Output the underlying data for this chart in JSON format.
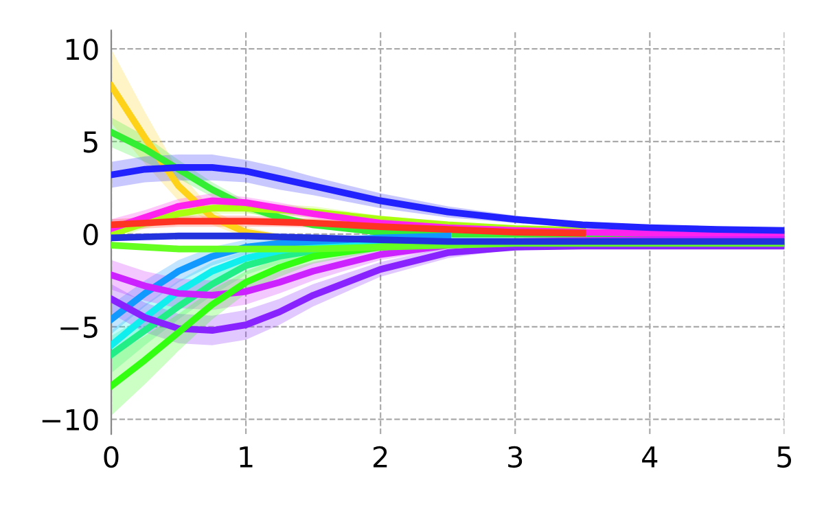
{
  "chart_data": {
    "type": "line",
    "xlim": [
      0,
      5
    ],
    "ylim": [
      -10.8,
      11
    ],
    "xticks": [
      0,
      1,
      2,
      3,
      4,
      5
    ],
    "yticks": [
      {
        "value": -10,
        "label": "−10"
      },
      {
        "value": -5,
        "label": "−5"
      },
      0,
      5,
      10
    ],
    "grid": true,
    "line_style": "solid",
    "marker": "none",
    "x": [
      0,
      0.25,
      0.5,
      0.75,
      1,
      1.25,
      1.5,
      2,
      2.5,
      3,
      3.5,
      4,
      4.5,
      5
    ],
    "series": [
      {
        "color": "#ffd21a",
        "values": [
          8,
          5.2,
          2.6,
          0.9,
          0.1,
          -0.2,
          null,
          null,
          null,
          null,
          null,
          null,
          null,
          null
        ],
        "lower": [
          6,
          3.8,
          1.8,
          0.5,
          -0.2,
          -0.4,
          -0.5,
          -0.4,
          -0.4,
          -0.4,
          -0.4,
          -0.4,
          -0.4,
          -0.4
        ],
        "upper": [
          10,
          6.6,
          3.4,
          1.3,
          0.4,
          0,
          -0.1,
          -0.2,
          -0.2,
          -0.2,
          -0.2,
          -0.2,
          -0.2,
          -0.2
        ]
      },
      {
        "color": "#33ee33",
        "values": [
          5.5,
          4.6,
          3.5,
          2.4,
          1.5,
          0.9,
          0.5,
          0.1,
          0,
          0,
          0,
          0,
          0,
          0
        ],
        "lower": [
          4.7,
          3.9,
          3,
          2,
          1.2,
          0.7,
          0.3,
          0,
          -0.1,
          -0.1,
          -0.1,
          -0.1,
          -0.1,
          -0.1
        ],
        "upper": [
          6.3,
          5.3,
          4,
          2.8,
          1.8,
          1.1,
          0.7,
          0.2,
          0.1,
          0.1,
          0.1,
          0.1,
          0.1,
          0.1
        ]
      },
      {
        "color": "#aaff11",
        "values": [
          0,
          0.6,
          1.1,
          1.4,
          1.4,
          1.3,
          1.2,
          0.8,
          0.5,
          0.3,
          0.2,
          null,
          null,
          null
        ],
        "lower": [
          -0.3,
          0.3,
          0.8,
          1.1,
          1.1,
          1.0,
          0.9,
          0.6,
          0.35,
          0.2,
          0.1,
          0.05,
          0,
          0
        ],
        "upper": [
          0.3,
          0.9,
          1.4,
          1.7,
          1.7,
          1.6,
          1.5,
          1.0,
          0.65,
          0.4,
          0.3,
          0.25,
          0.2,
          0.2
        ]
      },
      {
        "color": "#ff22ee",
        "values": [
          0.3,
          0.9,
          1.5,
          1.8,
          1.7,
          1.4,
          1.1,
          0.6,
          0.35,
          0.2,
          0.1,
          0.05,
          0,
          0
        ],
        "lower": [
          -0.2,
          0.5,
          1.1,
          1.4,
          1.4,
          1.1,
          0.85,
          0.4,
          0.2,
          0.1,
          0,
          0,
          -0.05,
          -0.05
        ],
        "upper": [
          0.8,
          1.3,
          1.9,
          2.2,
          2.0,
          1.7,
          1.35,
          0.8,
          0.5,
          0.3,
          0.2,
          0.1,
          0.05,
          0.05
        ]
      },
      {
        "color": "#ff3322",
        "values": [
          0.5,
          0.6,
          0.7,
          0.7,
          0.7,
          0.65,
          0.6,
          0.4,
          0.25,
          0.1,
          0.05,
          null,
          null,
          null
        ],
        "lower": [
          0.2,
          0.3,
          0.4,
          0.4,
          0.4,
          0.4,
          0.35,
          0.2,
          0.1,
          0,
          -0.05,
          -0.1,
          -0.1,
          -0.1
        ],
        "upper": [
          0.8,
          0.9,
          1.0,
          1.0,
          1.0,
          0.9,
          0.85,
          0.6,
          0.4,
          0.2,
          0.15,
          0.1,
          0.1,
          0.1
        ]
      },
      {
        "color": "#22ee88",
        "values": [
          -6.5,
          -5.2,
          -3.9,
          -2.7,
          -1.7,
          -1.2,
          -0.9,
          -0.5,
          -0.3,
          null,
          null,
          null,
          null,
          null
        ],
        "lower": [
          -7.5,
          -6,
          -4.6,
          -3.3,
          -2.2,
          -1.6,
          -1.2,
          -0.7,
          -0.45,
          -0.3,
          -0.3,
          -0.3,
          -0.3,
          -0.3
        ],
        "upper": [
          -5.5,
          -4.4,
          -3.2,
          -2.1,
          -1.2,
          -0.8,
          -0.6,
          -0.3,
          -0.15,
          -0.1,
          -0.1,
          -0.1,
          -0.1,
          -0.1
        ]
      },
      {
        "color": "#11eeee",
        "values": [
          -6,
          -4.5,
          -3.1,
          -2,
          -1.3,
          -0.9,
          -0.6,
          -0.3,
          -0.2,
          null,
          null,
          null,
          null,
          null
        ],
        "lower": [
          -6.8,
          -5.2,
          -3.7,
          -2.5,
          -1.7,
          -1.2,
          -0.85,
          -0.45,
          -0.3,
          -0.2,
          -0.2,
          -0.2,
          -0.2,
          -0.2
        ],
        "upper": [
          -5.2,
          -3.8,
          -2.5,
          -1.5,
          -0.9,
          -0.6,
          -0.35,
          -0.15,
          -0.1,
          0,
          0,
          0,
          0,
          0
        ]
      },
      {
        "color": "#1199ff",
        "values": [
          -4.6,
          -3.2,
          -2,
          -1.2,
          -0.7,
          -0.5,
          -0.4,
          -0.2,
          -0.1,
          null,
          null,
          null,
          null,
          null
        ],
        "lower": [
          -5.4,
          -3.9,
          -2.6,
          -1.7,
          -1.1,
          -0.8,
          -0.6,
          -0.35,
          -0.2,
          -0.2,
          -0.2,
          -0.2,
          -0.2,
          -0.2
        ],
        "upper": [
          -3.8,
          -2.5,
          -1.4,
          -0.7,
          -0.3,
          -0.2,
          -0.2,
          -0.05,
          0,
          0,
          0,
          0,
          0,
          0
        ]
      },
      {
        "color": "#cc22ff",
        "values": [
          -2.2,
          -2.8,
          -3.2,
          -3.3,
          -3.1,
          -2.6,
          -2.0,
          -1.1,
          -0.6,
          -0.4,
          -0.35,
          -0.3,
          -0.3,
          -0.3
        ],
        "lower": [
          -3,
          -3.6,
          -4,
          -4.1,
          -3.8,
          -3.2,
          -2.5,
          -1.4,
          -0.8,
          -0.5,
          -0.45,
          -0.4,
          -0.4,
          -0.4
        ],
        "upper": [
          -1.4,
          -2,
          -2.4,
          -2.5,
          -2.4,
          -2,
          -1.5,
          -0.8,
          -0.4,
          -0.3,
          -0.25,
          -0.2,
          -0.2,
          -0.2
        ]
      },
      {
        "color": "#8822ff",
        "values": [
          -3.5,
          -4.5,
          -5.1,
          -5.2,
          -4.9,
          -4.2,
          -3.3,
          -1.9,
          -1.0,
          -0.7,
          -0.65,
          -0.65,
          -0.65,
          -0.65
        ],
        "lower": [
          -4.3,
          -5.3,
          -5.9,
          -6,
          -5.7,
          -4.9,
          -3.9,
          -2.3,
          -1.3,
          -0.8,
          -0.6,
          -0.6,
          -0.6,
          -0.6
        ],
        "upper": [
          -2.7,
          -3.7,
          -4.3,
          -4.4,
          -4.1,
          -3.5,
          -2.7,
          -1.5,
          -0.7,
          -0.4,
          -0.4,
          -0.4,
          -0.4,
          -0.4
        ]
      },
      {
        "color": "#33ff11",
        "values": [
          -8.2,
          -6.8,
          -5.3,
          -3.8,
          -2.6,
          -1.8,
          -1.2,
          -0.7,
          -0.5,
          -0.4,
          null,
          null,
          null,
          null
        ],
        "lower": [
          -9.8,
          -8.1,
          -6.3,
          -4.6,
          -3.2,
          -2.3,
          -1.6,
          -0.9,
          -0.65,
          -0.5,
          -0.5,
          -0.5,
          -0.5,
          -0.5
        ],
        "upper": [
          -6.6,
          -5.5,
          -4.3,
          -3,
          -2,
          -1.3,
          -0.8,
          -0.5,
          -0.35,
          -0.3,
          -0.3,
          -0.3,
          -0.3,
          -0.3
        ]
      },
      {
        "color": "#66ff22",
        "values": [
          -0.6,
          -0.7,
          -0.8,
          -0.8,
          -0.8,
          -0.8,
          -0.8,
          -0.7,
          -0.6,
          -0.5,
          -0.5,
          -0.5,
          -0.5,
          -0.5
        ]
      },
      {
        "color": "#2233dd",
        "values": [
          -0.2,
          -0.15,
          -0.1,
          -0.1,
          -0.1,
          -0.15,
          -0.2,
          -0.3,
          -0.4,
          -0.4,
          -0.4,
          -0.4,
          -0.4,
          -0.4
        ]
      },
      {
        "color": "#2222ff",
        "values": [
          3.2,
          3.5,
          3.6,
          3.6,
          3.4,
          3.0,
          2.6,
          1.8,
          1.2,
          0.8,
          0.5,
          0.35,
          0.25,
          0.2
        ],
        "lower": [
          2.5,
          2.8,
          2.9,
          2.9,
          2.8,
          2.4,
          2.1,
          1.4,
          0.9,
          0.6,
          0.35,
          0.2,
          0.1,
          0.05
        ],
        "upper": [
          3.9,
          4.2,
          4.3,
          4.3,
          4.0,
          3.6,
          3.1,
          2.2,
          1.5,
          1.0,
          0.65,
          0.5,
          0.4,
          0.35
        ]
      }
    ]
  }
}
